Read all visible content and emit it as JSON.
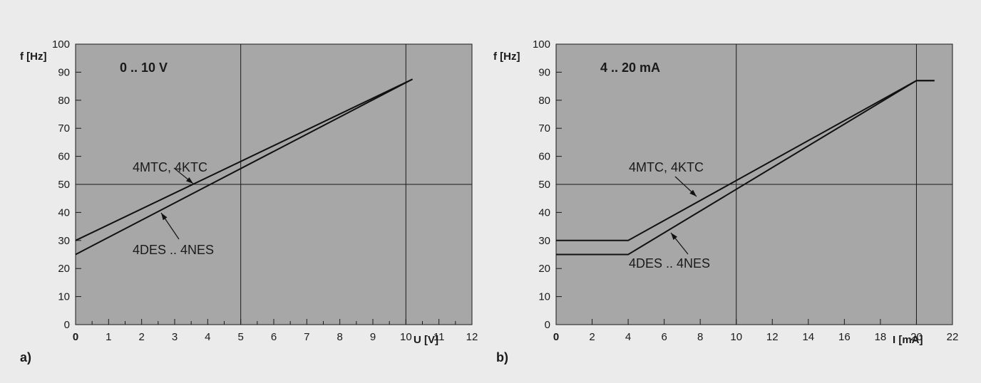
{
  "colors": {
    "background": "#ebebeb",
    "plot_area": "#a7a7a7",
    "lines": "#111111"
  },
  "chart_data": [
    {
      "type": "line",
      "panel_label": "a)",
      "annotation": "0 .. 10 V",
      "xlabel": "U [V]",
      "ylabel": "f [Hz]",
      "xlim": [
        0,
        12
      ],
      "ylim": [
        0,
        100
      ],
      "xticks": [
        0,
        1,
        2,
        3,
        4,
        5,
        6,
        7,
        8,
        9,
        10,
        11,
        12
      ],
      "yticks": [
        0,
        10,
        20,
        30,
        40,
        50,
        60,
        70,
        80,
        90,
        100
      ],
      "grid": {
        "x": [
          5,
          10
        ],
        "y": [
          50
        ]
      },
      "legend": "none",
      "series": [
        {
          "name": "4MTC, 4KTC",
          "x": [
            0,
            10.2
          ],
          "y": [
            30,
            87.5
          ]
        },
        {
          "name": "4DES .. 4NES",
          "x": [
            0,
            10.2
          ],
          "y": [
            25,
            87.5
          ]
        }
      ]
    },
    {
      "type": "line",
      "panel_label": "b)",
      "annotation": "4 .. 20 mA",
      "xlabel": "I [mA]",
      "ylabel": "f [Hz]",
      "xlim": [
        0,
        22
      ],
      "ylim": [
        0,
        100
      ],
      "xticks": [
        0,
        2,
        4,
        6,
        8,
        10,
        12,
        14,
        16,
        18,
        20,
        22
      ],
      "yticks": [
        0,
        10,
        20,
        30,
        40,
        50,
        60,
        70,
        80,
        90,
        100
      ],
      "grid": {
        "x": [
          10,
          20
        ],
        "y": [
          50
        ]
      },
      "legend": "none",
      "series": [
        {
          "name": "4MTC, 4KTC",
          "x": [
            0,
            4,
            20,
            21
          ],
          "y": [
            30,
            30,
            87,
            87
          ]
        },
        {
          "name": "4DES .. 4NES",
          "x": [
            0,
            4,
            20,
            21
          ],
          "y": [
            25,
            25,
            87,
            87
          ]
        }
      ]
    }
  ]
}
